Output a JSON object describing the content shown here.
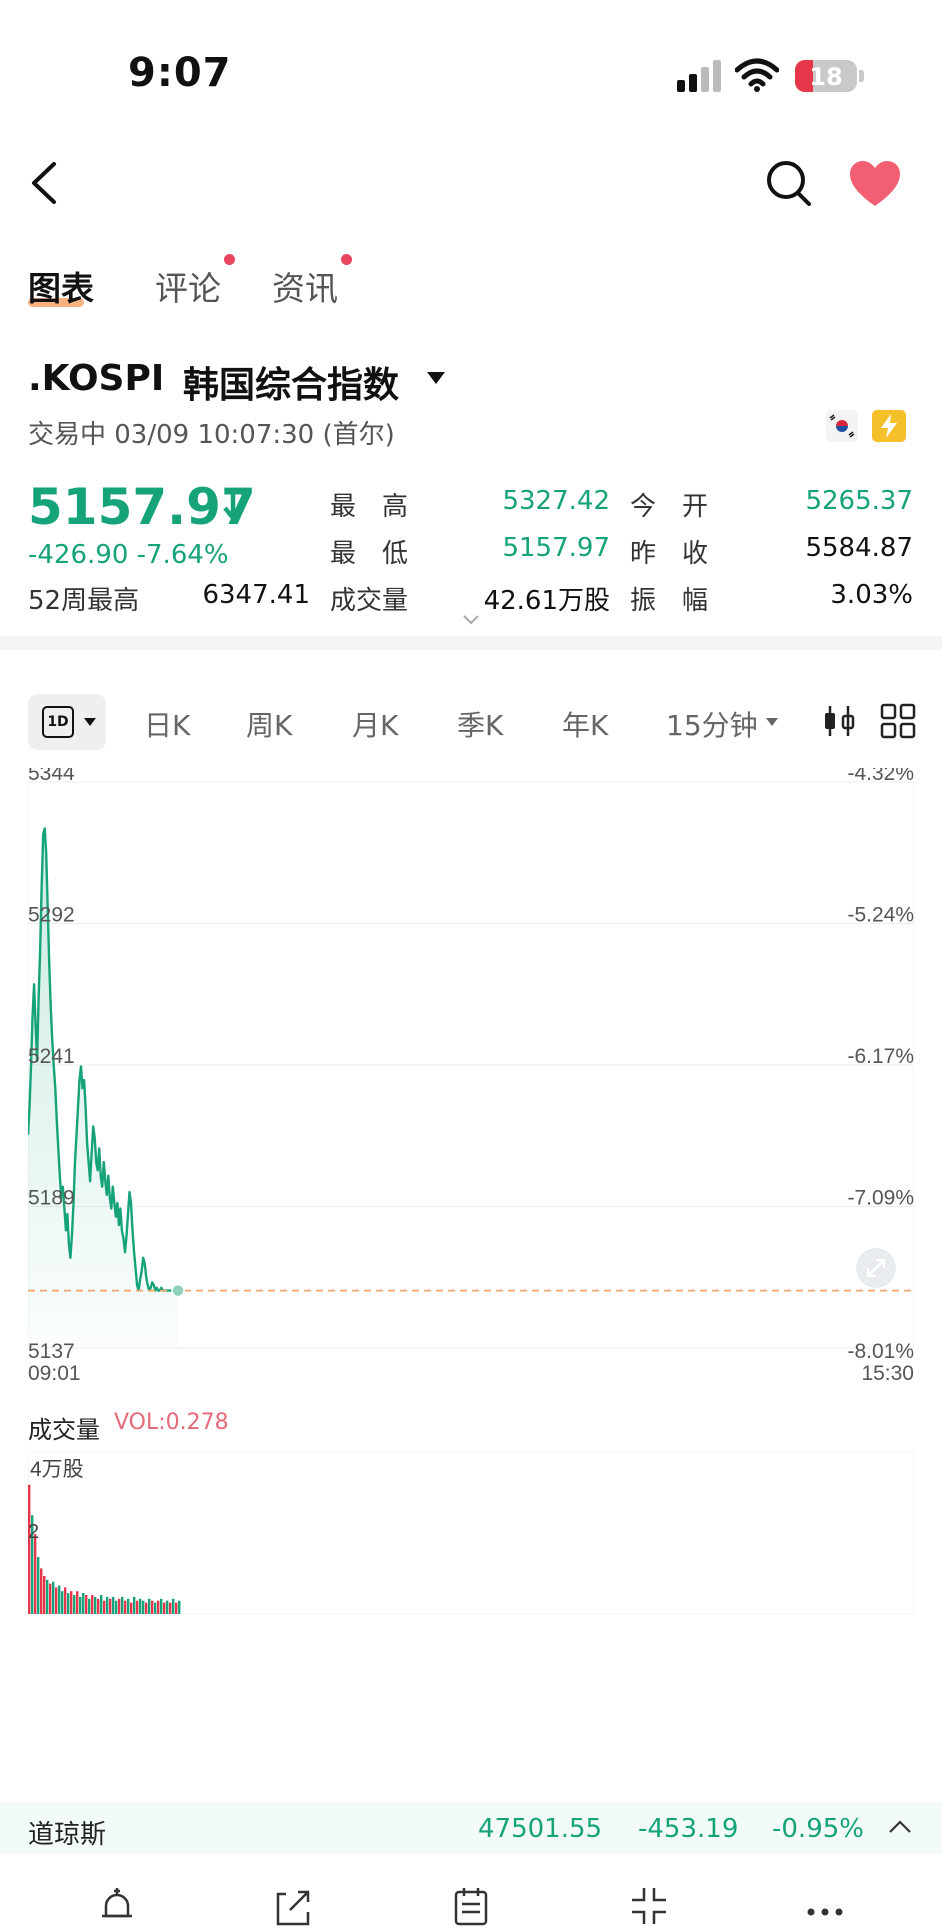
{
  "status_bar": {
    "time": "9:07",
    "battery": "18"
  },
  "tabs": [
    {
      "label": "图表",
      "active": true
    },
    {
      "label": "评论",
      "badge": true
    },
    {
      "label": "资讯",
      "badge": true
    }
  ],
  "quote": {
    "symbol": ".KOSPI",
    "name": "韩国综合指数",
    "status": "交易中 03/09 10:07:30 (首尔)",
    "price": "5157.97",
    "change": "-426.90",
    "change_pct": "-7.64%",
    "week52_label": "52周最高",
    "week52_value": "6347.41",
    "stats": [
      {
        "label": "最　高",
        "value": "5327.42",
        "color": "green"
      },
      {
        "label": "今　开",
        "value": "5265.37",
        "color": "green"
      },
      {
        "label": "最　低",
        "value": "5157.97",
        "color": "green"
      },
      {
        "label": "昨　收",
        "value": "5584.87",
        "color": "dark"
      },
      {
        "label": "成交量",
        "value": "42.61万股",
        "color": "dark"
      },
      {
        "label": "振　幅",
        "value": "3.03%",
        "color": "dark"
      }
    ]
  },
  "period_tabs": {
    "selected": "1D",
    "items": [
      "日K",
      "周K",
      "月K",
      "季K",
      "年K",
      "15分钟"
    ]
  },
  "chart_data": {
    "type": "area",
    "y_ticks_left": [
      "5344",
      "5292",
      "5241",
      "5189",
      "5137"
    ],
    "y_ticks_right": [
      "-4.32%",
      "-5.24%",
      "-6.17%",
      "-7.09%",
      "-8.01%"
    ],
    "x_ticks": [
      "09:01",
      "15:30"
    ],
    "ylim": [
      5137,
      5344
    ],
    "reference_close": 5157.97,
    "series": [
      {
        "x_index": [
          0,
          1,
          2,
          3,
          4,
          5,
          6,
          7,
          8,
          9,
          10,
          11,
          12,
          13,
          14,
          15,
          16,
          17,
          18,
          19,
          20,
          21,
          22,
          23,
          24,
          25,
          26,
          27,
          28,
          29,
          30,
          31,
          32,
          33,
          34,
          35,
          36,
          37,
          38,
          39,
          40,
          41,
          42,
          43,
          44,
          45,
          46,
          47,
          48,
          49,
          50,
          51,
          52,
          53,
          54,
          55,
          56,
          57,
          58,
          59,
          60,
          61,
          62,
          63,
          64,
          65,
          66,
          67,
          68,
          69,
          70,
          71,
          72,
          73,
          74,
          75,
          76,
          77,
          78,
          79,
          80,
          81,
          82,
          83,
          84,
          85,
          86,
          87,
          88,
          89,
          90,
          91,
          92,
          93,
          94,
          95,
          96,
          97,
          98,
          99
        ],
        "values": [
          5215,
          5225,
          5240,
          5258,
          5270,
          5255,
          5242,
          5265,
          5282,
          5305,
          5325,
          5327,
          5318,
          5298,
          5278,
          5262,
          5250,
          5240,
          5232,
          5220,
          5210,
          5200,
          5192,
          5196,
          5188,
          5180,
          5186,
          5175,
          5170,
          5178,
          5190,
          5205,
          5215,
          5225,
          5235,
          5240,
          5232,
          5235,
          5225,
          5212,
          5205,
          5198,
          5208,
          5218,
          5214,
          5205,
          5202,
          5210,
          5200,
          5196,
          5205,
          5198,
          5193,
          5200,
          5192,
          5188,
          5196,
          5190,
          5185,
          5190,
          5182,
          5188,
          5180,
          5177,
          5172,
          5178,
          5186,
          5194,
          5190,
          5180,
          5172,
          5166,
          5160,
          5158,
          5162,
          5165,
          5170,
          5168,
          5163,
          5160,
          5158,
          5159,
          5161,
          5160,
          5158,
          5159,
          5158,
          5158,
          5159,
          5158,
          5158,
          5158,
          5158,
          5158,
          5158,
          5158,
          5158,
          5158,
          5158,
          5158
        ]
      }
    ]
  },
  "volume": {
    "label": "成交量",
    "vol_text": "VOL:0.278",
    "axis_top": "4万股",
    "axis_mid": "2",
    "bars": [
      3.4,
      2.6,
      2.1,
      1.5,
      1.2,
      1.0,
      0.9,
      0.8,
      0.85,
      0.7,
      0.75,
      0.6,
      0.7,
      0.55,
      0.6,
      0.5,
      0.6,
      0.45,
      0.55,
      0.5,
      0.4,
      0.5,
      0.45,
      0.4,
      0.5,
      0.35,
      0.45,
      0.4,
      0.45,
      0.35,
      0.4,
      0.45,
      0.35,
      0.4,
      0.3,
      0.45,
      0.35,
      0.4,
      0.35,
      0.3,
      0.4,
      0.35,
      0.3,
      0.35,
      0.4,
      0.3,
      0.35,
      0.3,
      0.4,
      0.3,
      0.35
    ],
    "bar_colors": [
      "red",
      "green",
      "red",
      "green",
      "red",
      "red",
      "green",
      "red",
      "green",
      "red",
      "green",
      "green",
      "red",
      "green",
      "red",
      "green",
      "red",
      "green",
      "green",
      "red",
      "green",
      "red",
      "green",
      "red",
      "green",
      "red",
      "green",
      "red",
      "green",
      "green",
      "red",
      "green",
      "red",
      "green",
      "red",
      "green",
      "red",
      "green",
      "green",
      "red",
      "green",
      "red",
      "green",
      "red",
      "green",
      "red",
      "green",
      "red",
      "green",
      "red",
      "green"
    ]
  },
  "ticker": {
    "name": "道琼斯",
    "value": "47501.55",
    "change": "-453.19",
    "change_pct": "-0.95%"
  },
  "colors": {
    "up": "#e5364a",
    "down": "#16a37a",
    "accent": "#f7a36b"
  }
}
